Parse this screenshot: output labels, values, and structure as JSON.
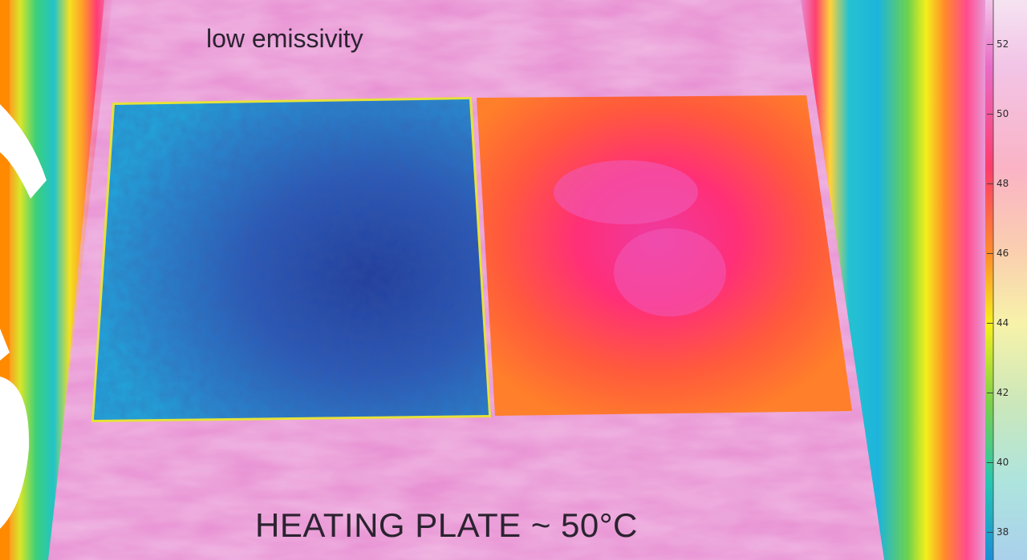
{
  "image": {
    "label_top": "low emissivity",
    "label_bottom": "HEATING PLATE ~ 50°C"
  },
  "color_scale": {
    "ticks": [
      "52",
      "50",
      "48",
      "46",
      "44",
      "42",
      "40",
      "38"
    ],
    "colors": [
      "#f2c4e8",
      "#e96bc7",
      "#ff3b6b",
      "#ff8a2a",
      "#f6f01a",
      "#7ad04a",
      "#25c7b0",
      "#1a8ed8"
    ]
  }
}
